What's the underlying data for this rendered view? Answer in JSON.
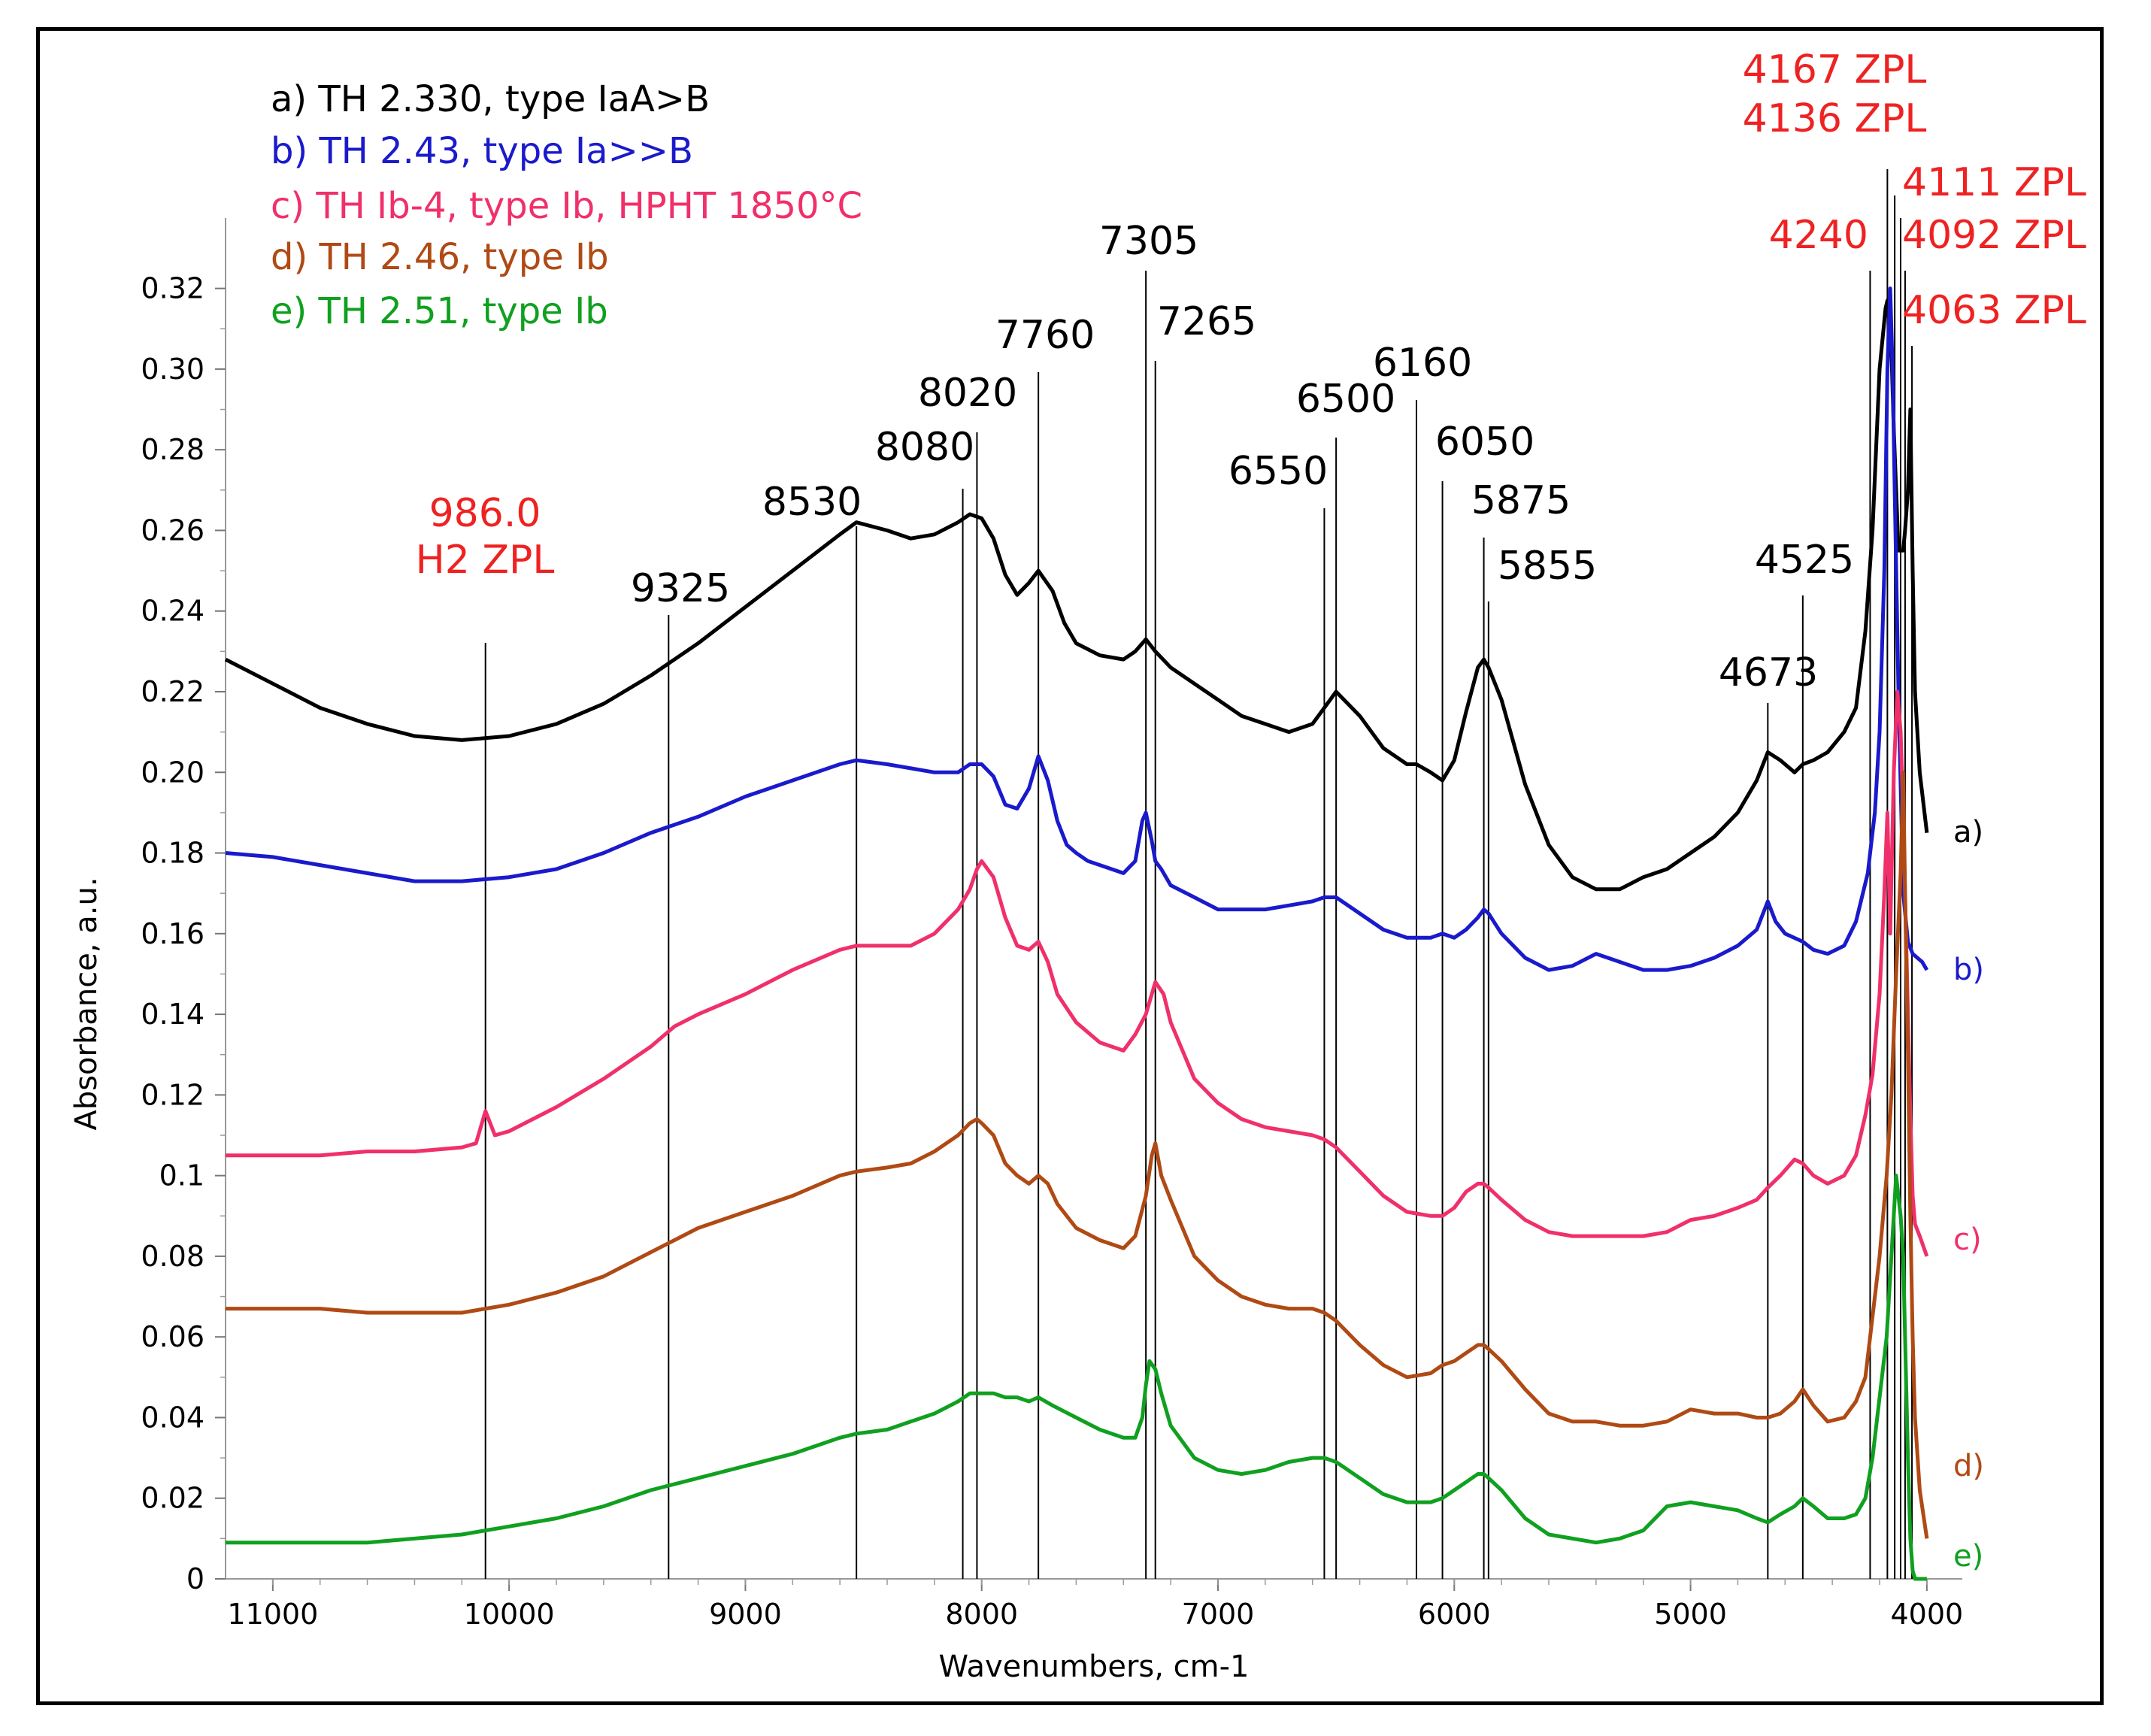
{
  "chart_data": {
    "type": "line",
    "title": "",
    "xlabel": "Wavenumbers, cm-1",
    "ylabel": "Absorbance, a.u.",
    "xlim": [
      11200,
      3850
    ],
    "ylim": [
      0,
      0.33
    ],
    "x_ticks": [
      11000,
      10000,
      9000,
      8000,
      7000,
      6000,
      5000,
      4000
    ],
    "x_tick_labels": [
      "11000",
      "10000",
      "9000",
      "8000",
      "7000",
      "6000",
      "5000",
      "4000"
    ],
    "y_ticks": [
      0,
      0.02,
      0.04,
      0.06,
      0.08,
      0.1,
      0.12,
      0.14,
      0.16,
      0.18,
      0.2,
      0.22,
      0.24,
      0.26,
      0.28,
      0.3,
      0.32
    ],
    "y_tick_labels": [
      "0",
      "0.02",
      "0.04",
      "0.06",
      "0.08",
      "0.1",
      "0.12",
      "0.14",
      "0.16",
      "0.18",
      "0.20",
      "0.22",
      "0.24",
      "0.26",
      "0.28",
      "0.30",
      "0.32"
    ],
    "legend": [
      {
        "text": "a) TH 2.330, type IaA>B",
        "color": "#000000"
      },
      {
        "text": "b) TH 2.43, type Ia>>B",
        "color": "#1a1acc"
      },
      {
        "text": "c) TH Ib-4, type Ib, HPHT 1850°C",
        "color": "#f0306a",
        "suffix_color": "#ee2222"
      },
      {
        "text": "d) TH 2.46, type Ib",
        "color": "#b04a14"
      },
      {
        "text": "e) TH 2.51, type Ib",
        "color": "#10a020"
      }
    ],
    "series": [
      {
        "name": "a)",
        "color": "#000000",
        "x": [
          11200,
          11000,
          10800,
          10600,
          10400,
          10200,
          10000,
          9800,
          9600,
          9400,
          9200,
          9000,
          8800,
          8600,
          8530,
          8400,
          8300,
          8200,
          8100,
          8050,
          8000,
          7950,
          7900,
          7850,
          7800,
          7760,
          7700,
          7650,
          7600,
          7500,
          7400,
          7350,
          7305,
          7265,
          7200,
          7100,
          7000,
          6900,
          6800,
          6700,
          6600,
          6550,
          6500,
          6400,
          6300,
          6200,
          6160,
          6100,
          6050,
          6000,
          5950,
          5900,
          5875,
          5855,
          5800,
          5700,
          5600,
          5500,
          5400,
          5300,
          5200,
          5100,
          5000,
          4900,
          4800,
          4720,
          4673,
          4620,
          4560,
          4525,
          4480,
          4420,
          4350,
          4300,
          4260,
          4230,
          4200,
          4175,
          4167,
          4150,
          4140,
          4120,
          4100,
          4092,
          4080,
          4070,
          4060,
          4050,
          4030,
          4000
        ],
        "y": [
          0.228,
          0.222,
          0.216,
          0.212,
          0.209,
          0.208,
          0.209,
          0.212,
          0.217,
          0.224,
          0.232,
          0.241,
          0.25,
          0.259,
          0.262,
          0.26,
          0.258,
          0.259,
          0.262,
          0.264,
          0.263,
          0.258,
          0.249,
          0.244,
          0.247,
          0.25,
          0.245,
          0.237,
          0.232,
          0.229,
          0.228,
          0.23,
          0.233,
          0.23,
          0.226,
          0.222,
          0.218,
          0.214,
          0.212,
          0.21,
          0.212,
          0.216,
          0.22,
          0.214,
          0.206,
          0.202,
          0.202,
          0.2,
          0.198,
          0.203,
          0.215,
          0.226,
          0.228,
          0.226,
          0.218,
          0.197,
          0.182,
          0.174,
          0.171,
          0.171,
          0.174,
          0.176,
          0.18,
          0.184,
          0.19,
          0.198,
          0.205,
          0.203,
          0.2,
          0.202,
          0.203,
          0.205,
          0.21,
          0.216,
          0.235,
          0.26,
          0.3,
          0.315,
          0.317,
          0.305,
          0.285,
          0.255,
          0.255,
          0.26,
          0.27,
          0.29,
          0.25,
          0.22,
          0.2,
          0.185
        ]
      },
      {
        "name": "b)",
        "color": "#1a1acc",
        "x": [
          11200,
          11000,
          10800,
          10600,
          10400,
          10200,
          10000,
          9800,
          9600,
          9400,
          9200,
          9000,
          8800,
          8600,
          8530,
          8400,
          8300,
          8200,
          8100,
          8050,
          8000,
          7950,
          7900,
          7850,
          7800,
          7760,
          7720,
          7680,
          7640,
          7600,
          7550,
          7500,
          7450,
          7400,
          7350,
          7320,
          7305,
          7280,
          7265,
          7240,
          7200,
          7100,
          7000,
          6900,
          6800,
          6700,
          6600,
          6550,
          6500,
          6400,
          6300,
          6200,
          6100,
          6050,
          6000,
          5950,
          5900,
          5875,
          5855,
          5800,
          5700,
          5600,
          5500,
          5400,
          5300,
          5200,
          5100,
          5000,
          4900,
          4800,
          4720,
          4673,
          4640,
          4600,
          4525,
          4480,
          4420,
          4350,
          4300,
          4250,
          4220,
          4200,
          4180,
          4167,
          4155,
          4145,
          4136,
          4120,
          4100,
          4080,
          4060,
          4040,
          4020,
          4000
        ],
        "y": [
          0.18,
          0.179,
          0.177,
          0.175,
          0.173,
          0.173,
          0.174,
          0.176,
          0.18,
          0.185,
          0.189,
          0.194,
          0.198,
          0.202,
          0.203,
          0.202,
          0.201,
          0.2,
          0.2,
          0.202,
          0.202,
          0.199,
          0.192,
          0.191,
          0.196,
          0.204,
          0.198,
          0.188,
          0.182,
          0.18,
          0.178,
          0.177,
          0.176,
          0.175,
          0.178,
          0.188,
          0.19,
          0.183,
          0.178,
          0.176,
          0.172,
          0.169,
          0.166,
          0.166,
          0.166,
          0.167,
          0.168,
          0.169,
          0.169,
          0.165,
          0.161,
          0.159,
          0.159,
          0.16,
          0.159,
          0.161,
          0.164,
          0.166,
          0.165,
          0.16,
          0.154,
          0.151,
          0.152,
          0.155,
          0.153,
          0.151,
          0.151,
          0.152,
          0.154,
          0.157,
          0.161,
          0.168,
          0.163,
          0.16,
          0.158,
          0.156,
          0.155,
          0.157,
          0.163,
          0.175,
          0.19,
          0.21,
          0.25,
          0.3,
          0.32,
          0.3,
          0.27,
          0.22,
          0.17,
          0.158,
          0.155,
          0.154,
          0.153,
          0.151
        ]
      },
      {
        "name": "c)",
        "color": "#f0306a",
        "x": [
          11200,
          11000,
          10800,
          10600,
          10400,
          10200,
          10140,
          10100,
          10060,
          10000,
          9800,
          9600,
          9400,
          9300,
          9200,
          9000,
          8800,
          8600,
          8530,
          8400,
          8300,
          8200,
          8100,
          8050,
          8020,
          8000,
          7950,
          7900,
          7850,
          7800,
          7760,
          7720,
          7680,
          7600,
          7500,
          7400,
          7350,
          7305,
          7265,
          7230,
          7200,
          7100,
          7000,
          6900,
          6800,
          6700,
          6600,
          6550,
          6500,
          6400,
          6300,
          6200,
          6100,
          6050,
          6000,
          5950,
          5900,
          5875,
          5855,
          5800,
          5700,
          5600,
          5500,
          5400,
          5300,
          5200,
          5100,
          5000,
          4900,
          4800,
          4720,
          4673,
          4620,
          4560,
          4525,
          4480,
          4420,
          4350,
          4300,
          4260,
          4230,
          4200,
          4180,
          4167,
          4155,
          4140,
          4125,
          4111,
          4100,
          4092,
          4080,
          4070,
          4060,
          4050,
          4030,
          4000
        ],
        "y": [
          0.105,
          0.105,
          0.105,
          0.106,
          0.106,
          0.107,
          0.108,
          0.116,
          0.11,
          0.111,
          0.117,
          0.124,
          0.132,
          0.137,
          0.14,
          0.145,
          0.151,
          0.156,
          0.157,
          0.157,
          0.157,
          0.16,
          0.166,
          0.171,
          0.176,
          0.178,
          0.174,
          0.164,
          0.157,
          0.156,
          0.158,
          0.153,
          0.145,
          0.138,
          0.133,
          0.131,
          0.135,
          0.14,
          0.148,
          0.145,
          0.138,
          0.124,
          0.118,
          0.114,
          0.112,
          0.111,
          0.11,
          0.109,
          0.107,
          0.101,
          0.095,
          0.091,
          0.09,
          0.09,
          0.092,
          0.096,
          0.098,
          0.098,
          0.097,
          0.094,
          0.089,
          0.086,
          0.085,
          0.085,
          0.085,
          0.085,
          0.086,
          0.089,
          0.09,
          0.092,
          0.094,
          0.097,
          0.1,
          0.104,
          0.103,
          0.1,
          0.098,
          0.1,
          0.105,
          0.115,
          0.125,
          0.145,
          0.17,
          0.19,
          0.16,
          0.2,
          0.22,
          0.21,
          0.19,
          0.17,
          0.14,
          0.115,
          0.095,
          0.088,
          0.085,
          0.08
        ]
      },
      {
        "name": "d)",
        "color": "#b04a14",
        "x": [
          11200,
          11000,
          10800,
          10600,
          10400,
          10200,
          10000,
          9800,
          9600,
          9400,
          9300,
          9200,
          9000,
          8800,
          8600,
          8530,
          8400,
          8300,
          8200,
          8100,
          8050,
          8020,
          8000,
          7950,
          7900,
          7850,
          7800,
          7760,
          7720,
          7680,
          7600,
          7500,
          7400,
          7350,
          7305,
          7280,
          7265,
          7240,
          7200,
          7100,
          7000,
          6900,
          6800,
          6700,
          6600,
          6550,
          6500,
          6400,
          6300,
          6200,
          6100,
          6050,
          6000,
          5950,
          5900,
          5875,
          5855,
          5800,
          5700,
          5600,
          5500,
          5400,
          5300,
          5200,
          5100,
          5000,
          4900,
          4800,
          4720,
          4673,
          4620,
          4560,
          4525,
          4480,
          4420,
          4350,
          4300,
          4260,
          4230,
          4200,
          4170,
          4150,
          4130,
          4111,
          4100,
          4092,
          4080,
          4070,
          4060,
          4050,
          4030,
          4000
        ],
        "y": [
          0.067,
          0.067,
          0.067,
          0.066,
          0.066,
          0.066,
          0.068,
          0.071,
          0.075,
          0.081,
          0.084,
          0.087,
          0.091,
          0.095,
          0.1,
          0.101,
          0.102,
          0.103,
          0.106,
          0.11,
          0.113,
          0.114,
          0.113,
          0.11,
          0.103,
          0.1,
          0.098,
          0.1,
          0.098,
          0.093,
          0.087,
          0.084,
          0.082,
          0.085,
          0.095,
          0.105,
          0.108,
          0.1,
          0.094,
          0.08,
          0.074,
          0.07,
          0.068,
          0.067,
          0.067,
          0.066,
          0.064,
          0.058,
          0.053,
          0.05,
          0.051,
          0.053,
          0.054,
          0.056,
          0.058,
          0.058,
          0.057,
          0.054,
          0.047,
          0.041,
          0.039,
          0.039,
          0.038,
          0.038,
          0.039,
          0.042,
          0.041,
          0.041,
          0.04,
          0.04,
          0.041,
          0.044,
          0.047,
          0.043,
          0.039,
          0.04,
          0.044,
          0.05,
          0.065,
          0.08,
          0.1,
          0.12,
          0.15,
          0.175,
          0.2,
          0.17,
          0.13,
          0.09,
          0.06,
          0.04,
          0.022,
          0.01
        ]
      },
      {
        "name": "e)",
        "color": "#10a020",
        "x": [
          11200,
          11000,
          10800,
          10600,
          10400,
          10200,
          10000,
          9800,
          9600,
          9400,
          9200,
          9000,
          8800,
          8600,
          8530,
          8400,
          8300,
          8200,
          8100,
          8050,
          8020,
          8000,
          7950,
          7900,
          7850,
          7800,
          7760,
          7700,
          7600,
          7500,
          7400,
          7350,
          7320,
          7305,
          7290,
          7265,
          7240,
          7200,
          7100,
          7000,
          6900,
          6800,
          6700,
          6600,
          6550,
          6500,
          6400,
          6300,
          6200,
          6100,
          6050,
          6000,
          5950,
          5900,
          5875,
          5855,
          5800,
          5700,
          5600,
          5500,
          5400,
          5300,
          5200,
          5100,
          5000,
          4900,
          4800,
          4720,
          4673,
          4620,
          4560,
          4525,
          4480,
          4420,
          4350,
          4300,
          4260,
          4230,
          4200,
          4170,
          4150,
          4130,
          4111,
          4100,
          4092,
          4080,
          4070,
          4060,
          4050,
          4030,
          4000
        ],
        "y": [
          0.009,
          0.009,
          0.009,
          0.009,
          0.01,
          0.011,
          0.013,
          0.015,
          0.018,
          0.022,
          0.025,
          0.028,
          0.031,
          0.035,
          0.036,
          0.037,
          0.039,
          0.041,
          0.044,
          0.046,
          0.046,
          0.046,
          0.046,
          0.045,
          0.045,
          0.044,
          0.045,
          0.043,
          0.04,
          0.037,
          0.035,
          0.035,
          0.04,
          0.048,
          0.054,
          0.052,
          0.046,
          0.038,
          0.03,
          0.027,
          0.026,
          0.027,
          0.029,
          0.03,
          0.03,
          0.029,
          0.025,
          0.021,
          0.019,
          0.019,
          0.02,
          0.022,
          0.024,
          0.026,
          0.026,
          0.025,
          0.022,
          0.015,
          0.011,
          0.01,
          0.009,
          0.01,
          0.012,
          0.018,
          0.019,
          0.018,
          0.017,
          0.015,
          0.014,
          0.016,
          0.018,
          0.02,
          0.018,
          0.015,
          0.015,
          0.016,
          0.02,
          0.03,
          0.045,
          0.06,
          0.08,
          0.1,
          0.09,
          0.08,
          0.06,
          0.03,
          0.01,
          0.002,
          0.0,
          0.0,
          0.0
        ]
      }
    ],
    "series_tags": [
      "a)",
      "b)",
      "c)",
      "d)",
      "e)"
    ],
    "reference_lines": [
      {
        "x": 10100,
        "label": "986.0\nH2 ZPL",
        "color": "#ee2222"
      },
      {
        "x": 9325,
        "label": "9325",
        "color": "#000000"
      },
      {
        "x": 8530,
        "label": "8530",
        "color": "#000000"
      },
      {
        "x": 8080,
        "label": "8080",
        "color": "#000000"
      },
      {
        "x": 8020,
        "label": "8020",
        "color": "#000000"
      },
      {
        "x": 7760,
        "label": "7760",
        "color": "#000000"
      },
      {
        "x": 7305,
        "label": "7305",
        "color": "#000000"
      },
      {
        "x": 7265,
        "label": "7265",
        "color": "#000000"
      },
      {
        "x": 6550,
        "label": "6550",
        "color": "#000000"
      },
      {
        "x": 6500,
        "label": "6500",
        "color": "#000000"
      },
      {
        "x": 6160,
        "label": "6160",
        "color": "#000000"
      },
      {
        "x": 6050,
        "label": "6050",
        "color": "#000000"
      },
      {
        "x": 5875,
        "label": "5875",
        "color": "#000000"
      },
      {
        "x": 5855,
        "label": "5855",
        "color": "#000000"
      },
      {
        "x": 4673,
        "label": "4673",
        "color": "#000000"
      },
      {
        "x": 4525,
        "label": "4525",
        "color": "#000000"
      },
      {
        "x": 4240,
        "label": "4240",
        "color": "#ee2222"
      },
      {
        "x": 4167,
        "label": "4167 ZPL",
        "color": "#ee2222"
      },
      {
        "x": 4136,
        "label": "4136 ZPL",
        "color": "#ee2222"
      },
      {
        "x": 4111,
        "label": "4111 ZPL",
        "color": "#ee2222"
      },
      {
        "x": 4092,
        "label": "4092 ZPL",
        "color": "#ee2222"
      },
      {
        "x": 4063,
        "label": "4063 ZPL",
        "color": "#ee2222"
      }
    ]
  }
}
